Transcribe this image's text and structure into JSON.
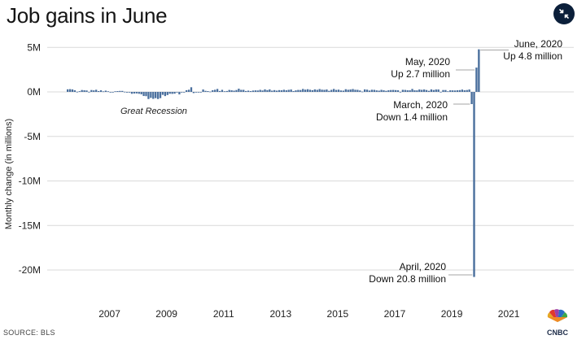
{
  "header": {
    "title": "Job gains in June",
    "collapse_icon": "collapse-arrows-icon"
  },
  "footer": {
    "source": "SOURCE: BLS",
    "logo_text": "CNBC"
  },
  "colors": {
    "bar": "#4a6f9d",
    "grid": "#d9d9d9",
    "button_bg": "#0b1f3a"
  },
  "chart_data": {
    "type": "bar",
    "title": "Job gains in June",
    "ylabel": "Monthly change (in millions)",
    "xlabel": "",
    "ylim": [
      -22,
      5.8
    ],
    "y_ticks": [
      5,
      0,
      -5,
      -10,
      -15,
      -20
    ],
    "y_tick_labels": [
      "5M",
      "0M",
      "-5M",
      "-10M",
      "-15M",
      "-20M"
    ],
    "x_tick_labels": [
      "2007",
      "2009",
      "2011",
      "2013",
      "2015",
      "2017",
      "2019",
      "2021"
    ],
    "grid": "horizontal",
    "start_month": "2006-01",
    "values": [
      0.29,
      0.31,
      0.28,
      0.18,
      0.02,
      0.08,
      0.21,
      0.18,
      0.16,
      0.01,
      0.21,
      0.17,
      0.24,
      0.09,
      0.18,
      0.06,
      0.14,
      0.07,
      -0.03,
      -0.02,
      0.07,
      0.09,
      0.11,
      0.11,
      0.02,
      -0.08,
      -0.07,
      -0.21,
      -0.18,
      -0.17,
      -0.21,
      -0.27,
      -0.46,
      -0.48,
      -0.8,
      -0.67,
      -0.78,
      -0.7,
      -0.8,
      -0.7,
      -0.33,
      -0.47,
      -0.35,
      -0.21,
      -0.22,
      -0.2,
      -0.01,
      -0.28,
      -0.04,
      -0.07,
      0.19,
      0.24,
      0.52,
      -0.13,
      -0.07,
      -0.06,
      -0.05,
      0.27,
      0.12,
      0.09,
      0.04,
      0.19,
      0.24,
      0.33,
      0.1,
      0.23,
      0.07,
      0.1,
      0.22,
      0.18,
      0.14,
      0.21,
      0.36,
      0.23,
      0.23,
      0.1,
      0.14,
      0.09,
      0.15,
      0.17,
      0.16,
      0.23,
      0.16,
      0.28,
      0.2,
      0.28,
      0.14,
      0.2,
      0.14,
      0.2,
      0.18,
      0.24,
      0.18,
      0.23,
      0.27,
      0.09,
      0.17,
      0.22,
      0.21,
      0.33,
      0.25,
      0.3,
      0.24,
      0.19,
      0.28,
      0.23,
      0.32,
      0.25,
      0.23,
      0.27,
      0.12,
      0.23,
      0.33,
      0.22,
      0.25,
      0.16,
      0.14,
      0.3,
      0.24,
      0.27,
      0.32,
      0.24,
      0.23,
      0.16,
      0.04,
      0.28,
      0.25,
      0.15,
      0.24,
      0.23,
      0.17,
      0.14,
      0.23,
      0.18,
      0.12,
      0.18,
      0.21,
      0.22,
      0.2,
      0.18,
      0.01,
      0.23,
      0.22,
      0.18,
      0.18,
      0.33,
      0.18,
      0.17,
      0.27,
      0.23,
      0.27,
      0.21,
      0.12,
      0.28,
      0.21,
      0.27,
      0.27,
      0.01,
      0.21,
      0.21,
      0.07,
      0.18,
      0.17,
      0.16,
      0.18,
      0.2,
      0.26,
      0.18,
      0.21,
      0.27,
      -1.37,
      -20.78,
      2.73,
      4.78
    ],
    "annotations": [
      {
        "lines": [
          "June, 2020",
          "Up 4.8 million"
        ]
      },
      {
        "lines": [
          "May, 2020",
          "Up 2.7 million"
        ]
      },
      {
        "lines": [
          "March, 2020",
          "Down 1.4 million"
        ]
      },
      {
        "lines": [
          "April, 2020",
          "Down 20.8 million"
        ]
      },
      {
        "lines": [
          "Great Recession"
        ]
      }
    ]
  }
}
